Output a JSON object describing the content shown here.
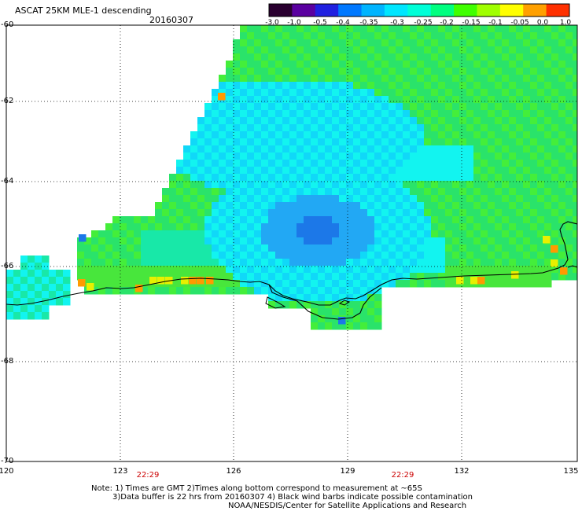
{
  "header": {
    "title": "ASCAT 25KM MLE-1 descending",
    "date": "20160307"
  },
  "colorbar": {
    "labels": [
      "-3.0",
      "-1.0",
      "-0.5",
      "-0.4",
      "-0.35",
      "-0.3",
      "-0.25",
      "-0.2",
      "-0.15",
      "-0.1",
      "-0.05",
      "0.0",
      "1.0"
    ],
    "colors": [
      "#2a0030",
      "#5a00a0",
      "#2020e0",
      "#0078ff",
      "#00b4ff",
      "#00e6ff",
      "#00ffd8",
      "#00ff80",
      "#40ff00",
      "#a0ff00",
      "#ffff00",
      "#ffa000",
      "#ff3000"
    ]
  },
  "map": {
    "lat_labels": [
      "-60",
      "-62",
      "-64",
      "-66",
      "-68",
      "-70"
    ],
    "lon_labels": [
      "120",
      "123",
      "126",
      "129",
      "132",
      "135"
    ],
    "time_labels": [
      "22:29",
      "22:29"
    ]
  },
  "notes": {
    "line1": "Note: 1) Times are GMT 2)Times along bottom correspond to measurement at ~65S",
    "line2": "3)Data buffer is 22 hrs from 20160307 4) Black wind barbs indicate possible contamination",
    "line3": "NOAA/NESDIS/Center for Satellite Applications and Research"
  }
}
